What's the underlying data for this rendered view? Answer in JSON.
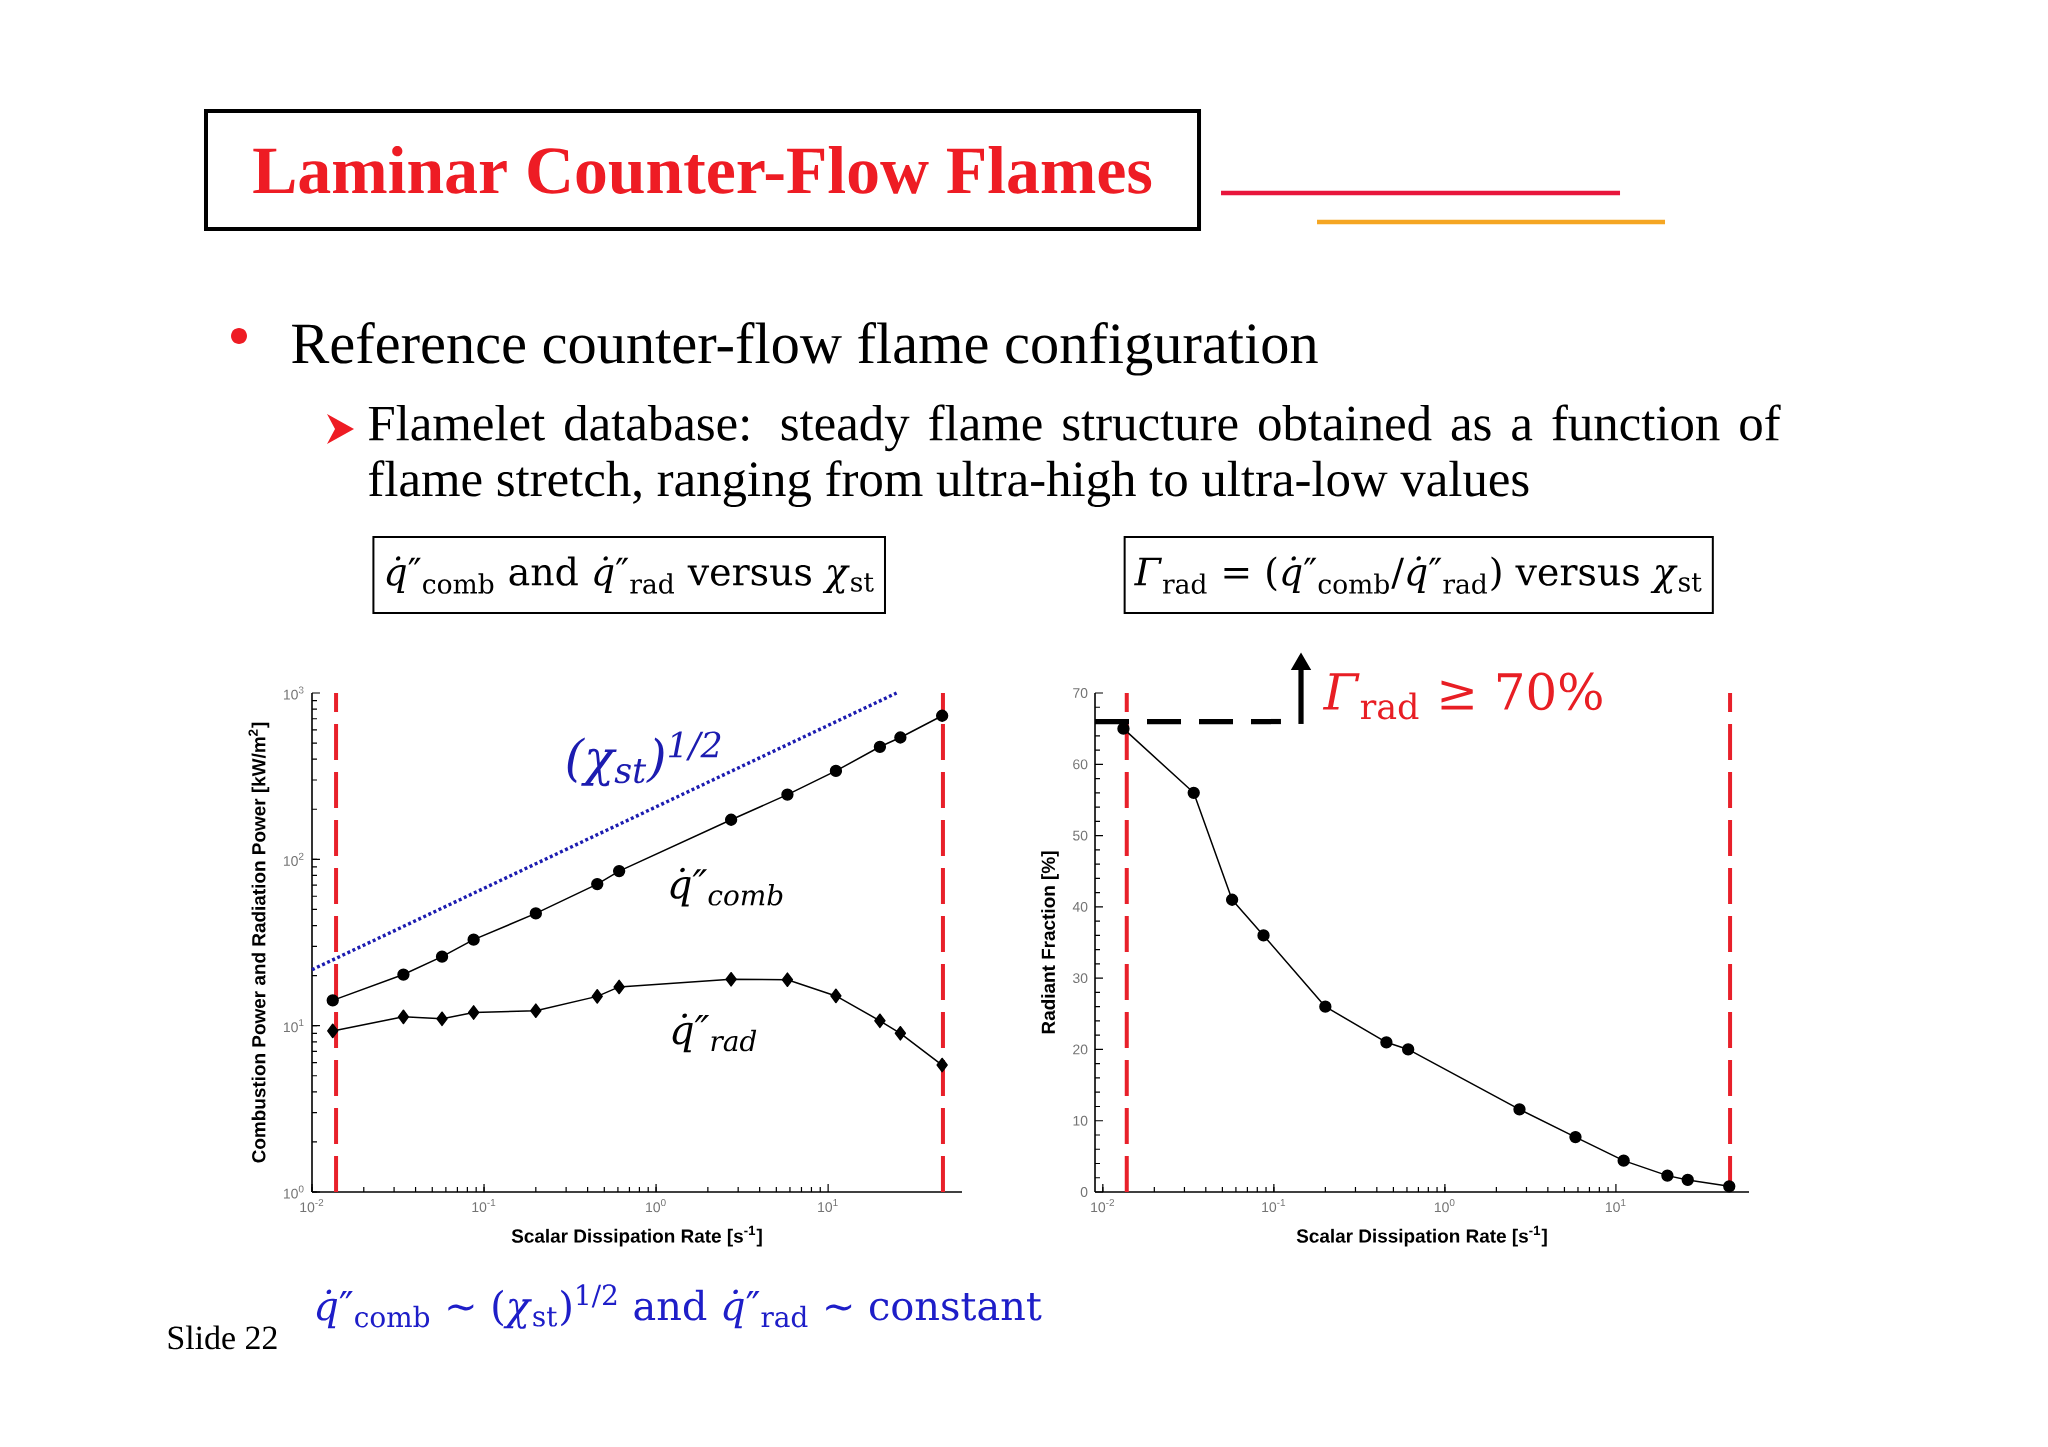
{
  "chart_data": [
    {
      "type": "other",
      "title": "Laminar Counter-Flow Flames",
      "annotations": [
        "Reference counter-flow flame configuration",
        "Flamelet database: steady flame structure obtained as a function of flame stretch, ranging from ultra-high to ultra-low values",
        "Slide 22"
      ]
    },
    {
      "type": "line",
      "title": "*q̇*″$_{comb}$ and *q̇*″$_{rad}$ versus *χ*$_{st}$",
      "xlabel": "Scalar Dissipation Rate [s$^{-1}$]",
      "ylabel": "Combustion Power and Radiation Power [kW/m$^{2}$]",
      "log": "xy",
      "xlim": [
        0.01,
        60
      ],
      "ylim": [
        1,
        1000
      ],
      "xticks": [
        {
          "value": 0.01,
          "label": "10$^{-2}$"
        },
        {
          "value": 0.1,
          "label": "10$^{-1}$"
        },
        {
          "value": 1,
          "label": "10$^{0}$"
        },
        {
          "value": 10,
          "label": "10$^{1}$"
        }
      ],
      "yticks": [
        {
          "value": 1,
          "label": "10$^{0}$"
        },
        {
          "value": 10,
          "label": "10$^{1}$"
        },
        {
          "value": 100,
          "label": "10$^{2}$"
        },
        {
          "value": 1000,
          "label": "10$^{3}$"
        }
      ],
      "x": [
        0.0132,
        0.034,
        0.057,
        0.087,
        0.2,
        0.455,
        0.61,
        2.73,
        5.8,
        11.1,
        20,
        26.3,
        46
      ],
      "series": [
        {
          "name": "q̇″$_{comb}$",
          "color": "#000000",
          "marker": "circle",
          "values": [
            14.2,
            20.3,
            26,
            32.9,
            47.3,
            71,
            85,
            173,
            245,
            340,
            475,
            540,
            730
          ]
        },
        {
          "name": "q̇″$_{rad}$",
          "color": "#000000",
          "marker": "diamond",
          "values": [
            9.3,
            11.3,
            11.0,
            12.0,
            12.3,
            15.0,
            17.1,
            19.0,
            18.9,
            15.1,
            10.7,
            9.0,
            5.8
          ]
        },
        {
          "name": "(χ$_{st}$)$^{1/2}$",
          "color": "#1c1cb0",
          "marker": "none",
          "line_style": "dotted",
          "x": [
            0.01,
            25
          ],
          "values": [
            21.7,
            1000
          ]
        }
      ],
      "ref_lines": [
        {
          "axis": "x",
          "value": 0.0138,
          "color": "#e8202a",
          "line_style": "dashed"
        },
        {
          "axis": "x",
          "value": 46.5,
          "color": "#e8202a",
          "line_style": "dashed"
        }
      ],
      "annotations": [
        "*q̇*″$_{comb}$ ~ (*χ*$_{st}$)$^{1/2}$ and *q̇*″$_{rad}$ ~ constant"
      ]
    },
    {
      "type": "line",
      "title": "*Γ*$_{rad}$ = (*q̇*″$_{comb}$/*q̇*″$_{rad}$) versus *χ*$_{st}$",
      "xlabel": "Scalar Dissipation Rate [s$^{-1}$]",
      "ylabel": "Radiant Fraction [%]",
      "log": "x",
      "xlim": [
        0.009,
        60
      ],
      "ylim": [
        0,
        70
      ],
      "xticks": [
        {
          "value": 0.01,
          "label": "10$^{-2}$"
        },
        {
          "value": 0.1,
          "label": "10$^{-1}$"
        },
        {
          "value": 1,
          "label": "10$^{0}$"
        },
        {
          "value": 10,
          "label": "10$^{1}$"
        }
      ],
      "yticks": [
        0,
        10,
        20,
        30,
        40,
        50,
        60,
        70
      ],
      "x": [
        0.0132,
        0.034,
        0.057,
        0.087,
        0.2,
        0.455,
        0.61,
        2.73,
        5.8,
        11.1,
        20,
        26.3,
        46
      ],
      "series": [
        {
          "color": "#000000",
          "marker": "circle",
          "values": [
            65,
            56,
            41,
            36,
            26,
            21,
            20,
            11.6,
            7.7,
            4.4,
            2.3,
            1.7,
            0.8
          ]
        },
        {
          "color": "#000000",
          "marker": "none",
          "line_style": "dashed",
          "x": [
            0.009,
            0.11
          ],
          "values": [
            66,
            66
          ]
        }
      ],
      "ref_lines": [
        {
          "axis": "x",
          "value": 0.0138,
          "color": "#e8202a",
          "line_style": "dashed"
        },
        {
          "axis": "x",
          "value": 46.5,
          "color": "#e8202a",
          "line_style": "dashed"
        }
      ],
      "annotations": [
        "*Γ*$_{rad}$ ≥ 70%"
      ]
    }
  ]
}
